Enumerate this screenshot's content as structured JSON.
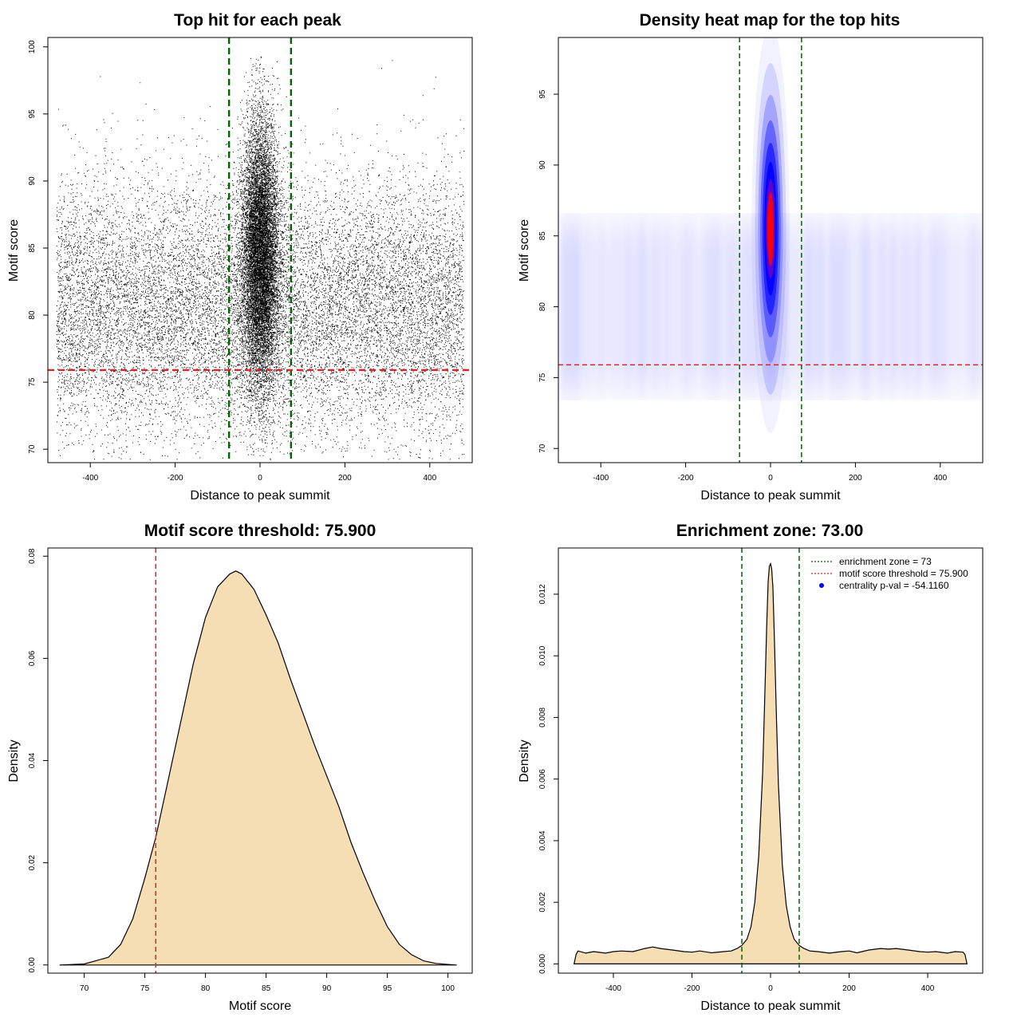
{
  "chart_data": [
    {
      "type": "scatter",
      "title": "Top hit for each peak",
      "xlabel": "Distance to peak summit",
      "ylabel": "Motif score",
      "xlim": [
        -500,
        500
      ],
      "ylim": [
        69,
        100.7
      ],
      "x_ticks": [
        "-400",
        "-200",
        "0",
        "200",
        "400"
      ],
      "y_ticks": [
        "70",
        "75",
        "80",
        "85",
        "90",
        "95",
        "100"
      ],
      "x_tick_values": [
        -400,
        -200,
        0,
        200,
        400
      ],
      "y_tick_values": [
        70,
        75,
        80,
        85,
        90,
        95,
        100
      ],
      "background_points": {
        "x_range": [
          -480,
          480
        ],
        "y_mean": 80.5,
        "y_sd": 4.8,
        "count": 16000
      },
      "central_points": {
        "x_mean": 0,
        "x_sd": 22,
        "y_mean": 84.5,
        "y_sd": 5.0,
        "count": 12000
      },
      "reference_lines": [
        {
          "axis": "x",
          "value": -73,
          "color": "#006400",
          "style": "dashed"
        },
        {
          "axis": "x",
          "value": 73,
          "color": "#006400",
          "style": "dashed"
        },
        {
          "axis": "y",
          "value": 75.9,
          "color": "#d62728",
          "style": "dashed"
        }
      ],
      "point_color": "#000000"
    },
    {
      "type": "heatmap",
      "title": "Density heat map for the top hits",
      "xlabel": "Distance to peak summit",
      "ylabel": "Motif score",
      "xlim": [
        -500,
        500
      ],
      "ylim": [
        69,
        99
      ],
      "x_ticks": [
        "-400",
        "-200",
        "0",
        "200",
        "400"
      ],
      "y_ticks": [
        "70",
        "75",
        "80",
        "85",
        "90",
        "95"
      ],
      "x_tick_values": [
        -400,
        -200,
        0,
        200,
        400
      ],
      "y_tick_values": [
        70,
        75,
        80,
        85,
        90,
        95
      ],
      "hotspot": {
        "x": 0,
        "y": 85.5,
        "x_spread": 14,
        "y_spread": 4.5
      },
      "color_scale": [
        "#ffffff",
        "#0000ff",
        "#ff0000"
      ],
      "reference_lines": [
        {
          "axis": "x",
          "value": -73,
          "color": "#006400",
          "style": "dashed"
        },
        {
          "axis": "x",
          "value": 73,
          "color": "#006400",
          "style": "dashed"
        },
        {
          "axis": "y",
          "value": 75.9,
          "color": "#d62728",
          "style": "dashed"
        }
      ]
    },
    {
      "type": "area",
      "title": "Motif score threshold: 75.900",
      "xlabel": "Motif score",
      "ylabel": "Density",
      "xlim": [
        67,
        102
      ],
      "ylim": [
        -0.0016,
        0.0816
      ],
      "x_ticks": [
        "70",
        "75",
        "80",
        "85",
        "90",
        "95",
        "100"
      ],
      "y_ticks": [
        "0.00",
        "0.02",
        "0.04",
        "0.06",
        "0.08"
      ],
      "x_tick_values": [
        70,
        75,
        80,
        85,
        90,
        95,
        100
      ],
      "y_tick_values": [
        0,
        0.02,
        0.04,
        0.06,
        0.08
      ],
      "x": [
        68,
        70,
        72,
        73,
        74,
        75,
        75.9,
        77,
        78,
        79,
        80,
        81,
        82,
        82.5,
        83,
        84,
        85,
        86,
        87,
        88,
        89,
        90,
        91,
        92,
        93,
        94,
        95,
        96,
        97,
        98,
        99,
        100,
        100.7
      ],
      "y": [
        0,
        0.0002,
        0.0015,
        0.004,
        0.009,
        0.017,
        0.025,
        0.037,
        0.048,
        0.059,
        0.068,
        0.074,
        0.0765,
        0.0771,
        0.0765,
        0.0735,
        0.0685,
        0.063,
        0.056,
        0.0495,
        0.043,
        0.037,
        0.031,
        0.024,
        0.018,
        0.0125,
        0.0075,
        0.004,
        0.002,
        0.0008,
        0.0003,
        0.0001,
        0
      ],
      "fill": "#f5deb3",
      "reference_lines": [
        {
          "axis": "x",
          "value": 75.9,
          "color": "#d62728",
          "style": "dashed"
        }
      ]
    },
    {
      "type": "area",
      "title": "Enrichment zone: 73.00",
      "xlabel": "Distance to peak summit",
      "ylabel": "Density",
      "xlim": [
        -540,
        540
      ],
      "ylim": [
        -0.0003,
        0.0135
      ],
      "x_ticks": [
        "-400",
        "-200",
        "0",
        "200",
        "400"
      ],
      "y_ticks": [
        "0.000",
        "0.002",
        "0.004",
        "0.006",
        "0.008",
        "0.010",
        "0.012"
      ],
      "x_tick_values": [
        -400,
        -200,
        0,
        200,
        400
      ],
      "y_tick_values": [
        0,
        0.002,
        0.004,
        0.006,
        0.008,
        0.01,
        0.012
      ],
      "x": [
        -500,
        -495,
        -490,
        -470,
        -450,
        -420,
        -400,
        -380,
        -350,
        -320,
        -300,
        -280,
        -250,
        -220,
        -200,
        -180,
        -150,
        -120,
        -100,
        -85,
        -73,
        -60,
        -50,
        -40,
        -30,
        -20,
        -15,
        -10,
        -6,
        -3,
        0,
        3,
        6,
        10,
        15,
        20,
        30,
        40,
        50,
        60,
        73,
        85,
        100,
        120,
        150,
        180,
        200,
        220,
        250,
        280,
        300,
        320,
        350,
        380,
        400,
        420,
        450,
        470,
        490,
        495,
        500
      ],
      "y": [
        0,
        0.0003,
        0.00042,
        0.00035,
        0.0004,
        0.00035,
        0.0004,
        0.00042,
        0.0004,
        0.0005,
        0.00055,
        0.0005,
        0.00045,
        0.0004,
        0.00038,
        0.00042,
        0.00036,
        0.0004,
        0.00042,
        0.0005,
        0.0006,
        0.0008,
        0.0012,
        0.002,
        0.0035,
        0.0062,
        0.0085,
        0.0109,
        0.0124,
        0.0129,
        0.013,
        0.0128,
        0.0122,
        0.0105,
        0.008,
        0.0058,
        0.0032,
        0.0019,
        0.0012,
        0.0008,
        0.0006,
        0.0005,
        0.00042,
        0.0004,
        0.00035,
        0.0004,
        0.00042,
        0.00036,
        0.00045,
        0.0005,
        0.00048,
        0.0005,
        0.00045,
        0.0004,
        0.00038,
        0.0004,
        0.00035,
        0.0004,
        0.00038,
        0.0003,
        0
      ],
      "fill": "#f5deb3",
      "reference_lines": [
        {
          "axis": "x",
          "value": -73,
          "color": "#006400",
          "style": "dashed"
        },
        {
          "axis": "x",
          "value": 73,
          "color": "#006400",
          "style": "dashed"
        }
      ],
      "legend": {
        "position": "top-right",
        "entries": [
          {
            "label": "enrichment zone = 73",
            "color": "#006400",
            "kind": "dotted-line"
          },
          {
            "label": "motif score threshold = 75.900",
            "color": "#d62728",
            "kind": "dotted-line"
          },
          {
            "label": "centrality p-val = -54.1160",
            "color": "#0000ff",
            "kind": "point"
          }
        ]
      }
    }
  ]
}
